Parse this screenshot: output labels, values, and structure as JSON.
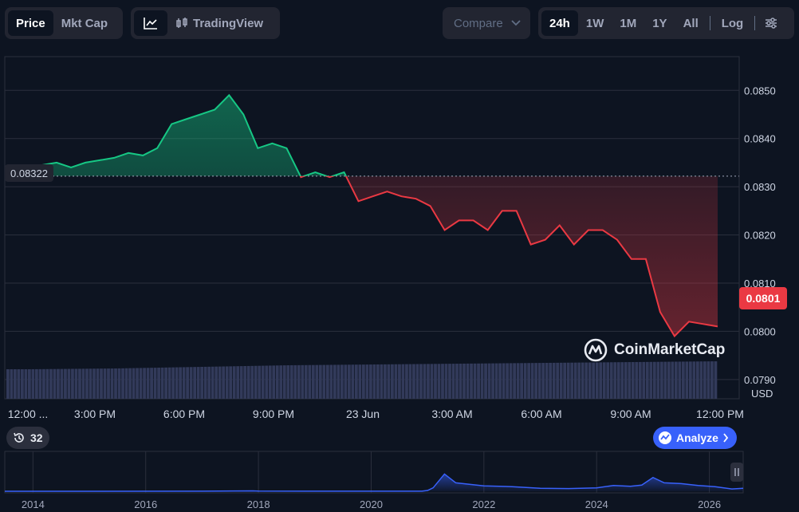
{
  "toolbar": {
    "price_label": "Price",
    "mktcap_label": "Mkt Cap",
    "tradingview_label": "TradingView",
    "compare_label": "Compare",
    "ranges": [
      "24h",
      "1W",
      "1M",
      "1Y",
      "All"
    ],
    "active_range": "24h",
    "log_label": "Log"
  },
  "chart_data": [
    {
      "type": "area",
      "currency_label": "USD",
      "ylim": [
        0.0786,
        0.0857
      ],
      "y_ticks": [
        "0.0790",
        "0.0800",
        "0.0810",
        "0.0820",
        "0.0830",
        "0.0840",
        "0.0850"
      ],
      "x_tick_labels": [
        "12:00 ...",
        "3:00 PM",
        "6:00 PM",
        "9:00 PM",
        "23 Jun",
        "3:00 AM",
        "6:00 AM",
        "9:00 AM",
        "12:00 PM"
      ],
      "reference_price": 0.08322,
      "reference_label": "0.08322",
      "current_price": 0.0801,
      "current_label": "0.0801",
      "grid": true,
      "colors": {
        "up": "#16c784",
        "down": "#ea3943",
        "volume": "#323a5a"
      },
      "series": [
        {
          "x_hours": [
            0,
            0.5,
            1,
            1.5,
            2,
            2.5,
            3,
            3.5,
            4,
            4.5,
            5,
            5.5,
            6,
            6.5,
            7,
            7.5,
            8,
            8.5,
            9,
            9.5,
            10,
            10.5,
            11,
            11.5,
            12,
            12.5,
            13,
            13.5,
            14,
            14.5,
            15,
            15.5,
            16,
            16.5,
            17,
            17.5,
            18,
            18.5,
            19,
            19.5,
            20,
            20.5,
            21,
            21.5,
            22,
            22.5,
            23,
            23.5,
            24
          ],
          "values": [
            0.0833,
            0.08345,
            0.0835,
            0.0834,
            0.0835,
            0.08355,
            0.0836,
            0.0837,
            0.08365,
            0.0838,
            0.0843,
            0.0844,
            0.0845,
            0.0846,
            0.0849,
            0.0845,
            0.0838,
            0.0839,
            0.0838,
            0.0832,
            0.0833,
            0.0832,
            0.0833,
            0.0827,
            0.0828,
            0.0829,
            0.0828,
            0.08275,
            0.0826,
            0.0821,
            0.0823,
            0.0823,
            0.0821,
            0.0825,
            0.0825,
            0.0818,
            0.0819,
            0.0822,
            0.0818,
            0.0821,
            0.0821,
            0.0819,
            0.0815,
            0.0815,
            0.0804,
            0.0799,
            0.0802,
            0.08015,
            0.0801
          ]
        }
      ],
      "volume": {
        "x_hours": [
          0,
          3,
          6,
          9,
          12,
          15,
          18,
          21,
          24
        ],
        "values": [
          37,
          38,
          40,
          42,
          43,
          44,
          45,
          46,
          47
        ]
      }
    },
    {
      "type": "area",
      "x_tick_labels": [
        "2014",
        "2016",
        "2018",
        "2020",
        "2022",
        "2024",
        "2026"
      ],
      "xlim": [
        2013.5,
        2026.6
      ],
      "x_years": [
        2013.5,
        2017,
        2017.9,
        2018,
        2020.9,
        2021,
        2021.1,
        2021.3,
        2021.5,
        2022,
        2022.5,
        2023,
        2023.5,
        2024,
        2024.3,
        2024.6,
        2024.8,
        2025,
        2025.2,
        2025.5,
        2025.8,
        2026.1,
        2026.4,
        2026.6
      ],
      "values": [
        0.0005,
        0.002,
        0.01,
        0.005,
        0.003,
        0.02,
        0.09,
        0.45,
        0.22,
        0.14,
        0.12,
        0.08,
        0.07,
        0.09,
        0.15,
        0.13,
        0.16,
        0.36,
        0.22,
        0.2,
        0.15,
        0.12,
        0.06,
        0.08
      ],
      "history_count": "32",
      "analyze_label": "Analyze"
    }
  ],
  "watermark": "CoinMarketCap",
  "handle_icon": "pause-bars-icon"
}
